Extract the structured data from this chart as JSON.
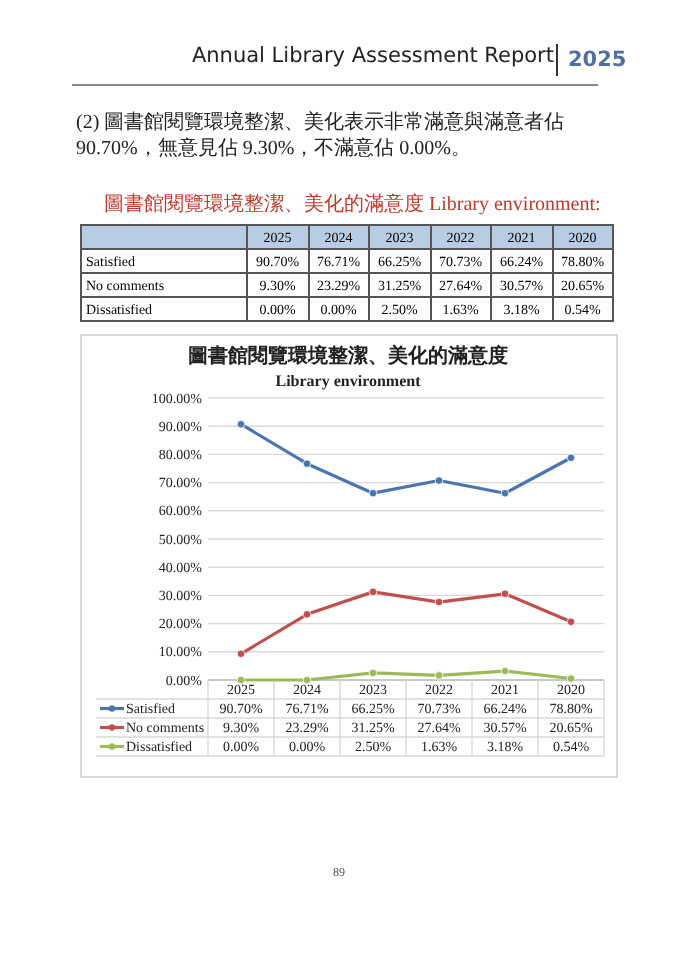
{
  "chart_data": {
    "type": "line",
    "title": "圖書館閱覽環境整潔、美化的滿意度",
    "subtitle": "Library environment",
    "annotations": [
      "Annual Library Assessment Report",
      "2025",
      "(2)  圖書館閱覽環境整潔、美化表示非常滿意與滿意者佔 90.70%，無意見佔 9.30%，不滿意佔 0.00%。",
      "圖書館閱覽環境整潔、美化的滿意度 Library environment:",
      "89"
    ],
    "categories": [
      "2025",
      "2024",
      "2023",
      "2022",
      "2021",
      "2020"
    ],
    "series": [
      {
        "name": "Satisfied",
        "color": "#4a76b0",
        "values": [
          90.7,
          76.71,
          66.25,
          70.73,
          66.24,
          78.8
        ],
        "value_labels": [
          "90.70%",
          "76.71%",
          "66.25%",
          "70.73%",
          "66.24%",
          "78.80%"
        ]
      },
      {
        "name": "No comments",
        "color": "#c0504d",
        "values": [
          9.3,
          23.29,
          31.25,
          27.64,
          30.57,
          20.65
        ],
        "value_labels": [
          "9.30%",
          "23.29%",
          "31.25%",
          "27.64%",
          "30.57%",
          "20.65%"
        ]
      },
      {
        "name": "Dissatisfied",
        "color": "#9bbb59",
        "values": [
          0.0,
          0.0,
          2.5,
          1.63,
          3.18,
          0.54
        ],
        "value_labels": [
          "0.00%",
          "0.00%",
          "2.50%",
          "1.63%",
          "3.18%",
          "0.54%"
        ]
      }
    ],
    "ylim": [
      0,
      100
    ],
    "yticks": [
      {
        "value": 0,
        "label": "0.00%"
      },
      {
        "value": 10,
        "label": "10.00%"
      },
      {
        "value": 20,
        "label": "20.00%"
      },
      {
        "value": 30,
        "label": "30.00%"
      },
      {
        "value": 40,
        "label": "40.00%"
      },
      {
        "value": 50,
        "label": "50.00%"
      },
      {
        "value": 60,
        "label": "60.00%"
      },
      {
        "value": 70,
        "label": "70.00%"
      },
      {
        "value": 80,
        "label": "80.00%"
      },
      {
        "value": 90,
        "label": "90.00%"
      },
      {
        "value": 100,
        "label": "100.00%"
      }
    ],
    "grid": "y",
    "legend": "bottom",
    "marker": "circle",
    "line_style": "solid"
  }
}
